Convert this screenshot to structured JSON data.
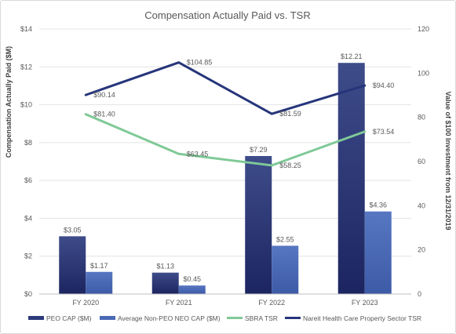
{
  "chart_data": {
    "type": "bar",
    "title": "Compensation Actually Paid vs. TSR",
    "categories": [
      "FY 2020",
      "FY 2021",
      "FY 2022",
      "FY 2023"
    ],
    "ylabel": "Compensation Actually Paid ($M)",
    "y2label": "Value of $100 Investment from 12/31/2019",
    "ylim": [
      0,
      14
    ],
    "y2lim": [
      0,
      120
    ],
    "yticks": [
      "$0",
      "$2",
      "$4",
      "$6",
      "$8",
      "$10",
      "$12",
      "$14"
    ],
    "y2ticks": [
      "0",
      "20",
      "40",
      "60",
      "80",
      "100",
      "120"
    ],
    "grid": true,
    "legend_position": "bottom",
    "series": [
      {
        "name": "PEO CAP ($M)",
        "kind": "bar",
        "axis": "left",
        "color": "#2b3a7a",
        "values": [
          3.05,
          1.13,
          7.29,
          12.21
        ],
        "labels": [
          "$3.05",
          "$1.13",
          "$7.29",
          "$12.21"
        ]
      },
      {
        "name": "Average Non-PEO NEO CAP ($M)",
        "kind": "bar",
        "axis": "left",
        "color": "#4a69b5",
        "values": [
          1.17,
          0.45,
          2.55,
          4.36
        ],
        "labels": [
          "$1.17",
          "$0.45",
          "$2.55",
          "$4.36"
        ]
      },
      {
        "name": "SBRA TSR",
        "kind": "line",
        "axis": "right",
        "color": "#7fc997",
        "values": [
          81.4,
          63.45,
          58.25,
          73.54
        ],
        "labels": [
          "$81.40",
          "$63.45",
          "$58.25",
          "$73.54"
        ]
      },
      {
        "name": "Nareit Health Care Property Sector TSR",
        "kind": "line",
        "axis": "right",
        "color": "#26357a",
        "values": [
          90.14,
          104.85,
          81.59,
          94.4
        ],
        "labels": [
          "$90.14",
          "$104.85",
          "$81.59",
          "$94.40"
        ]
      }
    ]
  }
}
